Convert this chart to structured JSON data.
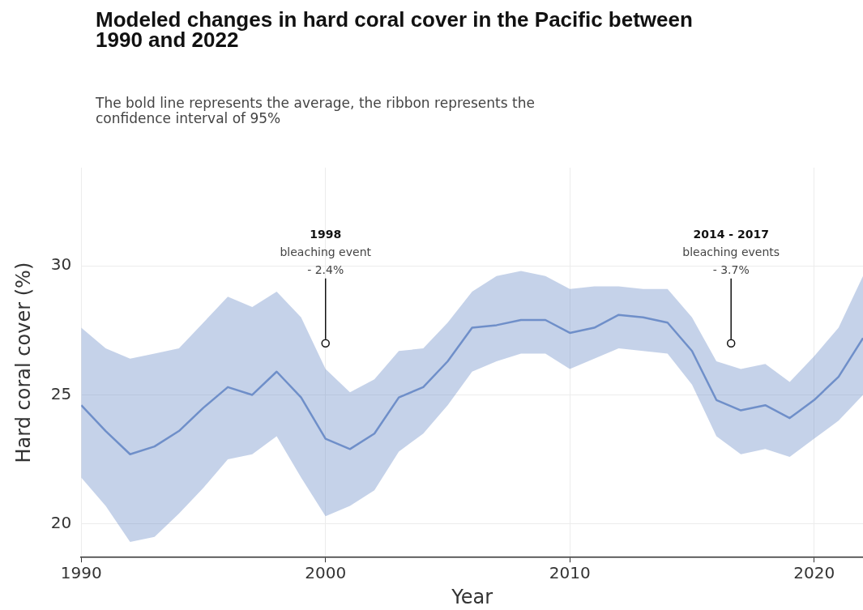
{
  "chart_data": {
    "type": "line",
    "title": "Modeled changes in hard coral cover in the Pacific between 1990 and 2022",
    "subtitle": "The bold line represents the average, the ribbon represents the confidence interval of 95%",
    "xlabel": "Year",
    "ylabel": "Hard coral cover (%)",
    "x": [
      1990,
      1991,
      1992,
      1993,
      1994,
      1995,
      1996,
      1997,
      1998,
      1999,
      2000,
      2001,
      2002,
      2003,
      2004,
      2005,
      2006,
      2007,
      2008,
      2009,
      2010,
      2011,
      2012,
      2013,
      2014,
      2015,
      2016,
      2017,
      2018,
      2019,
      2020,
      2021,
      2022
    ],
    "series": [
      {
        "color": "#6f8fc9",
        "values": [
          24.6,
          23.6,
          22.7,
          23.0,
          23.6,
          24.5,
          25.3,
          25.0,
          25.9,
          24.9,
          23.3,
          22.9,
          23.5,
          24.9,
          25.3,
          26.3,
          27.6,
          27.7,
          27.9,
          27.9,
          27.4,
          27.6,
          28.1,
          28.0,
          27.8,
          26.7,
          24.8,
          24.4,
          24.6,
          24.1,
          24.8,
          25.7,
          27.2
        ],
        "upper": [
          27.6,
          26.8,
          26.4,
          26.6,
          26.8,
          27.8,
          28.8,
          28.4,
          29.0,
          28.0,
          26.0,
          25.1,
          25.6,
          26.7,
          26.8,
          27.8,
          29.0,
          29.6,
          29.8,
          29.6,
          29.1,
          29.2,
          29.2,
          29.1,
          29.1,
          28.0,
          26.3,
          26.0,
          26.2,
          25.5,
          26.5,
          27.6,
          29.6
        ],
        "lower": [
          21.8,
          20.7,
          19.3,
          19.5,
          20.4,
          21.4,
          22.5,
          22.7,
          23.4,
          21.8,
          20.3,
          20.7,
          21.3,
          22.8,
          23.5,
          24.6,
          25.9,
          26.3,
          26.6,
          26.6,
          26.0,
          26.4,
          26.8,
          26.7,
          26.6,
          25.4,
          23.4,
          22.7,
          22.9,
          22.6,
          23.3,
          24.0,
          25.0
        ]
      }
    ],
    "xlim": [
      1990,
      2022
    ],
    "xticks": [
      1990,
      2000,
      2010,
      2020
    ],
    "ylim": [
      18.7,
      33.8
    ],
    "yticks": [
      20,
      25,
      30
    ],
    "grid": true,
    "marker": "none",
    "line_style": "solid",
    "annotations": [
      {
        "text": "1998\nbleaching event\n- 2.4%",
        "x": 2000,
        "y": 27
      },
      {
        "text": "2014 - 2017\nbleaching events\n- 3.7%",
        "x": 2016.6,
        "y": 27
      }
    ]
  }
}
